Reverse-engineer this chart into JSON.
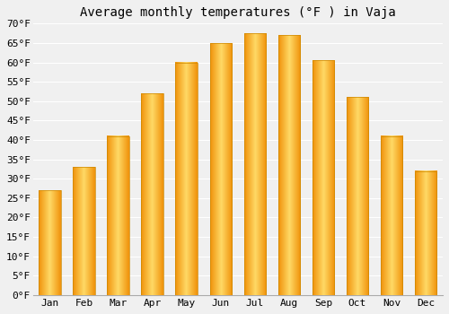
{
  "title": "Average monthly temperatures (°F ) in Vaja",
  "months": [
    "Jan",
    "Feb",
    "Mar",
    "Apr",
    "May",
    "Jun",
    "Jul",
    "Aug",
    "Sep",
    "Oct",
    "Nov",
    "Dec"
  ],
  "values": [
    27,
    33,
    41,
    52,
    60,
    65,
    67.5,
    67,
    60.5,
    51,
    41,
    32
  ],
  "bar_color": "#FFA500",
  "bar_color_light": "#FFD966",
  "bar_color_dark": "#F0920A",
  "ylim": [
    0,
    70
  ],
  "yticks": [
    0,
    5,
    10,
    15,
    20,
    25,
    30,
    35,
    40,
    45,
    50,
    55,
    60,
    65,
    70
  ],
  "ylabel_suffix": "°F",
  "background_color": "#f0f0f0",
  "grid_color": "#ffffff",
  "title_fontsize": 10,
  "tick_fontsize": 8
}
